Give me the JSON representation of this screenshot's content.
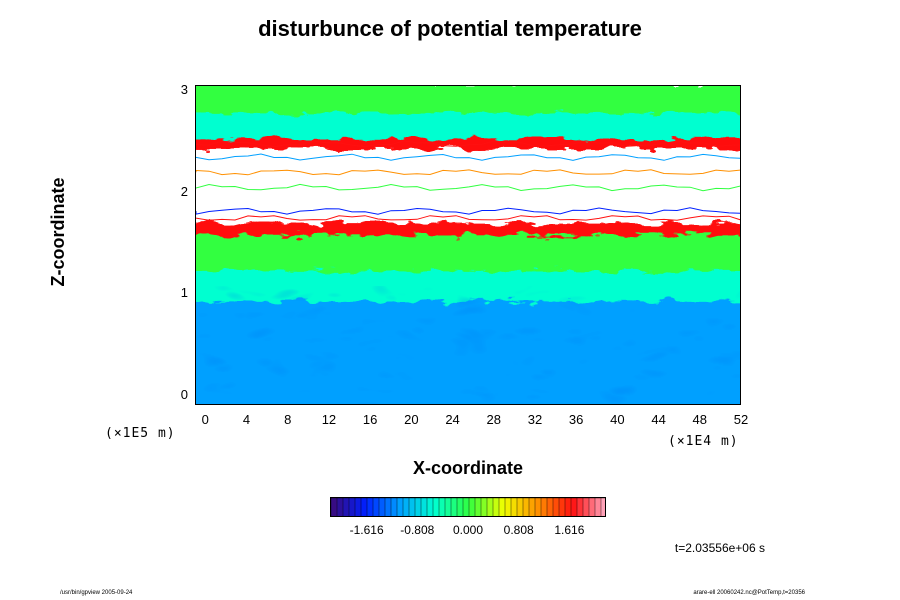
{
  "chart_data": {
    "type": "heatmap",
    "title": "disturbunce of potential temperature",
    "xlabel": "X-coordinate",
    "ylabel": "Z-coordinate",
    "x_ticks": [
      "0",
      "4",
      "8",
      "12",
      "16",
      "20",
      "24",
      "28",
      "32",
      "36",
      "40",
      "44",
      "48",
      "52"
    ],
    "x_tick_values": [
      0,
      4,
      8,
      12,
      16,
      20,
      24,
      28,
      32,
      36,
      40,
      44,
      48,
      52
    ],
    "y_ticks": [
      "0",
      "1",
      "2",
      "3"
    ],
    "y_tick_values": [
      0,
      1,
      2,
      3
    ],
    "xlim": [
      -1,
      52
    ],
    "ylim": [
      -0.1,
      3.05
    ],
    "x_scale_note": "(×1E4 m)",
    "y_scale_note": "(×1E5 m)",
    "colorbar": {
      "ticks": [
        "-1.616",
        "-0.808",
        "0.000",
        "0.808",
        "1.616"
      ],
      "tick_values": [
        -1.616,
        -0.808,
        0.0,
        0.808,
        1.616
      ],
      "range": [
        -2.2,
        2.2
      ],
      "colormap": [
        "#3c0a78",
        "#0020ff",
        "#00a0ff",
        "#00ffd0",
        "#30ff40",
        "#f0ff00",
        "#ff9000",
        "#ff1010",
        "#ffb0c8"
      ]
    },
    "time_label": "t=2.03556e+06 s",
    "field_bands_z": [
      {
        "z_from": -0.1,
        "z_to": 0.95,
        "value": -1.0
      },
      {
        "z_from": 0.95,
        "z_to": 1.25,
        "value": -0.55
      },
      {
        "z_from": 1.25,
        "z_to": 1.6,
        "value": 0.25
      },
      {
        "z_from": 1.6,
        "z_to": 1.72,
        "value": 1.4
      },
      {
        "z_from": 1.72,
        "z_to": 2.45,
        "value": 3.0
      },
      {
        "z_from": 2.45,
        "z_to": 2.55,
        "value": 1.6
      },
      {
        "z_from": 2.55,
        "z_to": 2.8,
        "value": -0.45
      },
      {
        "z_from": 2.8,
        "z_to": 3.05,
        "value": 0.2
      }
    ]
  },
  "footer": {
    "left": "/usr/bin/gpview 2005-09-24",
    "right": "arare-ell 20060242.nc@PotTemp,t=20356"
  }
}
